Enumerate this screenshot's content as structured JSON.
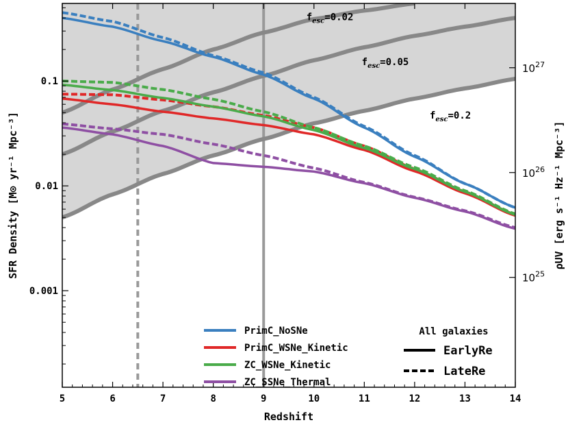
{
  "chart_data": {
    "type": "line",
    "xlabel": "Redshift",
    "ylabel": "SFR Density [M⊙ yr⁻¹ Mpc⁻³]",
    "ylabel_right": "ρUV [erg s⁻¹ Hz⁻¹ Mpc⁻³]",
    "xlim": [
      5,
      14
    ],
    "ylim": [
      0.00012,
      0.55
    ],
    "yscale": "log",
    "x_ticks": [
      "5",
      "6",
      "7",
      "8",
      "9",
      "10",
      "11",
      "12",
      "13",
      "14"
    ],
    "y_ticks": [
      {
        "value": 0.1,
        "label": "0.1"
      },
      {
        "value": 0.01,
        "label": "0.01"
      },
      {
        "value": 0.001,
        "label": "0.001"
      }
    ],
    "y_right_ticks": [
      {
        "value": 0.134,
        "label": "10^27",
        "base": "10",
        "exp": "27"
      },
      {
        "value": 0.0134,
        "label": "10^26",
        "base": "10",
        "exp": "26"
      },
      {
        "value": 0.00134,
        "label": "10^25",
        "base": "10",
        "exp": "25"
      }
    ],
    "vertical_lines": [
      {
        "x": 6.5,
        "style": "dashed",
        "color": "#999999"
      },
      {
        "x": 9.0,
        "style": "solid",
        "color": "#999999"
      }
    ],
    "escape_fraction_curves": [
      {
        "label_prefix": "f",
        "label_sub": "esc",
        "label_value": "=0.02",
        "x": [
          5,
          6,
          7,
          8,
          9,
          10,
          11,
          12
        ],
        "y": [
          0.05,
          0.083,
          0.13,
          0.2,
          0.29,
          0.39,
          0.47,
          0.55
        ],
        "label_x": 9.85,
        "label_y": 0.38
      },
      {
        "label_prefix": "f",
        "label_sub": "esc",
        "label_value": "=0.05",
        "x": [
          5,
          6,
          7,
          8,
          9,
          10,
          11,
          12,
          13,
          14
        ],
        "y": [
          0.02,
          0.033,
          0.052,
          0.078,
          0.112,
          0.158,
          0.21,
          0.27,
          0.33,
          0.4
        ],
        "label_x": 10.95,
        "label_y": 0.142
      },
      {
        "label_prefix": "f",
        "label_sub": "esc",
        "label_value": "=0.2",
        "x": [
          5,
          6,
          7,
          8,
          9,
          10,
          11,
          12,
          13,
          14
        ],
        "y": [
          0.005,
          0.0083,
          0.013,
          0.0195,
          0.028,
          0.0395,
          0.052,
          0.068,
          0.085,
          0.105
        ],
        "label_x": 12.3,
        "label_y": 0.044
      }
    ],
    "series": [
      {
        "name": "PrimC_NoSNe",
        "color": "#3a7fbf",
        "x": [
          5,
          6,
          7,
          8,
          9,
          10,
          11,
          12,
          13,
          14
        ],
        "early": [
          0.4,
          0.33,
          0.24,
          0.17,
          0.115,
          0.068,
          0.036,
          0.019,
          0.0105,
          0.0062
        ],
        "late": [
          0.45,
          0.37,
          0.26,
          0.175,
          0.12,
          0.07,
          0.037,
          0.0195,
          0.0105,
          0.0062
        ]
      },
      {
        "name": "PrimC_WSNe_Kinetic",
        "color": "#e02828",
        "x": [
          5,
          6,
          7,
          8,
          9,
          10,
          11,
          12,
          13,
          14
        ],
        "early": [
          0.068,
          0.06,
          0.051,
          0.044,
          0.038,
          0.031,
          0.022,
          0.0138,
          0.0085,
          0.0052
        ],
        "late": [
          0.075,
          0.074,
          0.066,
          0.057,
          0.047,
          0.036,
          0.024,
          0.0145,
          0.0088,
          0.0053
        ]
      },
      {
        "name": "ZC_WSNe_Kinetic",
        "color": "#4aab4a",
        "x": [
          5,
          6,
          7,
          8,
          9,
          10,
          11,
          12,
          13,
          14
        ],
        "early": [
          0.092,
          0.082,
          0.069,
          0.057,
          0.046,
          0.034,
          0.023,
          0.0145,
          0.0088,
          0.0053
        ],
        "late": [
          0.1,
          0.097,
          0.083,
          0.067,
          0.051,
          0.036,
          0.024,
          0.015,
          0.009,
          0.0054
        ]
      },
      {
        "name": "ZC_SSNe_Thermal",
        "color": "#8e4fa3",
        "x": [
          5,
          6,
          7,
          8,
          9,
          10,
          11,
          12,
          13,
          14
        ],
        "early": [
          0.036,
          0.031,
          0.024,
          0.0165,
          0.0152,
          0.0137,
          0.0106,
          0.0077,
          0.0057,
          0.0039
        ],
        "late": [
          0.039,
          0.035,
          0.031,
          0.025,
          0.0195,
          0.0148,
          0.0108,
          0.0078,
          0.0058,
          0.004
        ]
      }
    ],
    "legend": {
      "placement": "bottom-center",
      "header": "All galaxies",
      "style_entries": [
        "EarlyRe",
        "LateRe"
      ]
    },
    "shading": {
      "color": "#d6d6d6",
      "description_region": "above lowest escape-fraction curve"
    }
  }
}
